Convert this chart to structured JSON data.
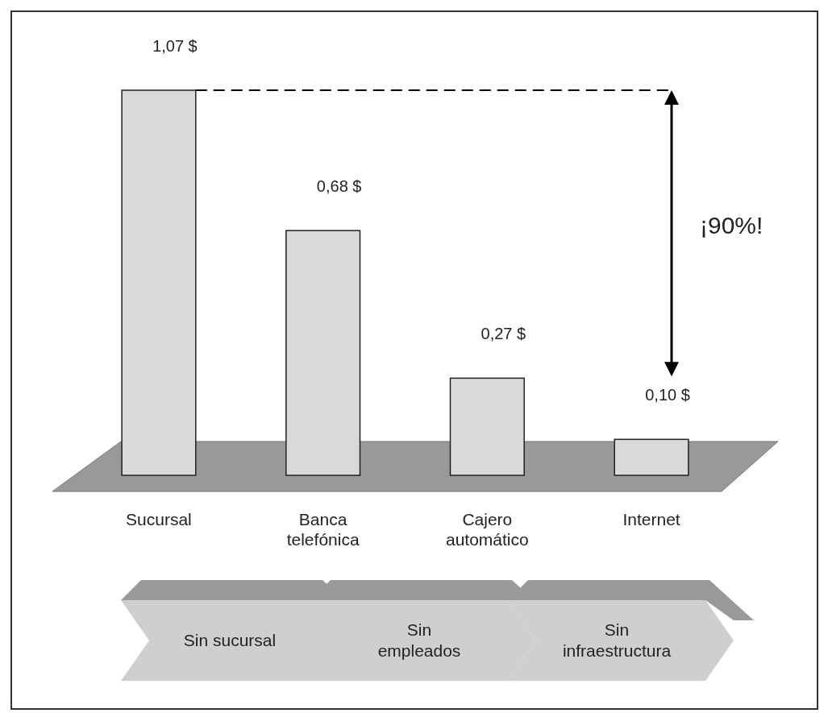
{
  "chart_data": {
    "type": "bar",
    "categories": [
      "Sucursal",
      "Banca telefónica",
      "Cajero automático",
      "Internet"
    ],
    "values": [
      1.07,
      0.68,
      0.27,
      0.1
    ],
    "value_labels": [
      "1,07 $",
      "0,68 $",
      "0,27 $",
      "0,10 $"
    ],
    "color": "#d9d9d9",
    "ref_lines": [
      {
        "axis": "y",
        "value": 1.07,
        "line_style": "dashed",
        "color": "#000000"
      }
    ],
    "annotations": [
      "¡90%!",
      "Sin sucursal",
      "Sin empleados",
      "Sin infraestructura"
    ]
  }
}
